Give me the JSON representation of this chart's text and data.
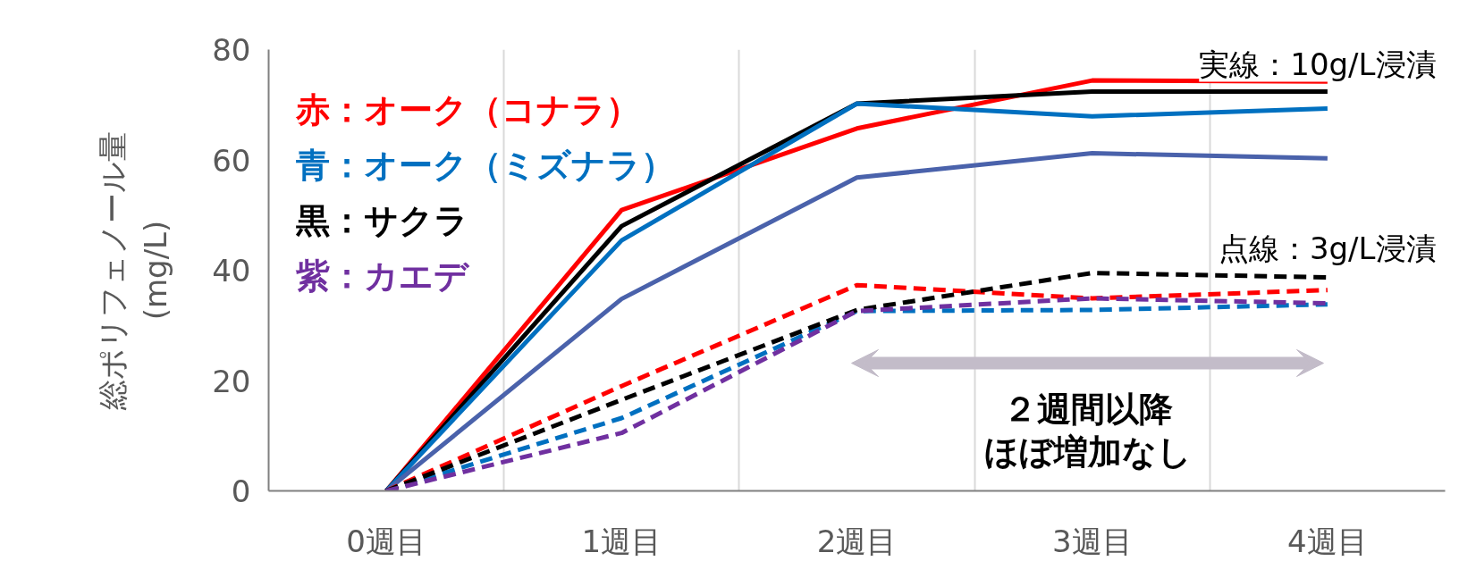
{
  "chart_data": {
    "type": "line",
    "ylabel": "総ポリフェノール量\n(mg/L)",
    "categories": [
      "0週目",
      "1週目",
      "2週目",
      "3週目",
      "4週目"
    ],
    "ylim": [
      0,
      80
    ],
    "yticks": [
      0,
      20,
      40,
      60,
      80
    ],
    "grid": "x",
    "legend": "top left",
    "series": [
      {
        "color": "#ff0000",
        "line_style": "solid",
        "values": [
          0,
          50.9,
          65.7,
          74.4,
          74.2
        ]
      },
      {
        "color": "#000000",
        "line_style": "solid",
        "values": [
          0,
          48,
          70.2,
          72.4,
          72.4
        ]
      },
      {
        "color": "#0070c0",
        "line_style": "solid",
        "values": [
          0,
          45.4,
          70.2,
          67.9,
          69.3
        ]
      },
      {
        "color": "#4a62ab",
        "line_style": "solid",
        "values": [
          0,
          34.8,
          56.8,
          61.2,
          60.3
        ]
      },
      {
        "name": "赤：オーク（コナラ）",
        "color": "#ff0000",
        "line_style": "dashed",
        "values": [
          0,
          19,
          37.3,
          34.9,
          36.4
        ]
      },
      {
        "name": "青：オーク（ミズナラ）",
        "color": "#0070c0",
        "line_style": "dashed",
        "values": [
          0,
          13.2,
          32.6,
          32.8,
          33.8
        ]
      },
      {
        "name": "黒：サクラ",
        "color": "#000000",
        "line_style": "dashed",
        "values": [
          0,
          16.5,
          32.8,
          39.5,
          38.7
        ]
      },
      {
        "name": "紫：カエデ",
        "color": "#7030a0",
        "line_style": "dashed",
        "values": [
          0,
          10.5,
          32.6,
          34.9,
          34.0
        ]
      }
    ],
    "annotations": [
      "実線：10g/L浸漬",
      "点線：3g/L浸漬",
      "２週間以降ほぼ増加なし"
    ]
  }
}
